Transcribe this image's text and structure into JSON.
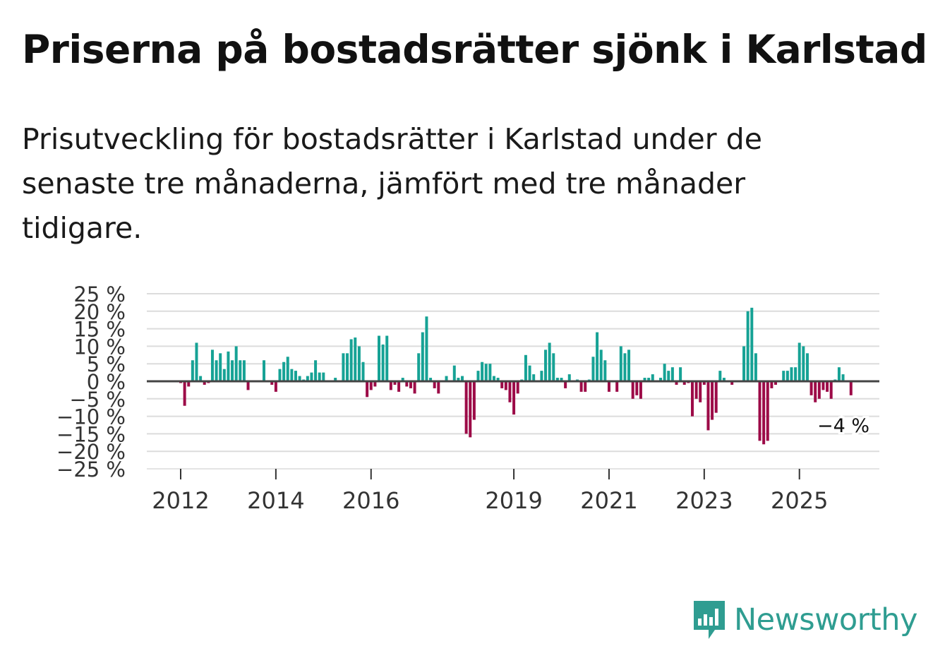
{
  "title": "Priserna på bostadsrätter sjönk i Karlstad",
  "subtitle": "Prisutveckling för bostadsrätter i Karlstad under de senaste tre månaderna, jämfört med tre månader tidigare.",
  "brand": "Newsworthy",
  "colors": {
    "positive": "#16a295",
    "negative": "#9c0a47",
    "grid": "#dcdcdc",
    "zero": "#444444"
  },
  "chart_data": {
    "type": "bar",
    "title": "",
    "xlabel": "",
    "ylabel": "",
    "ylim": [
      -25,
      25
    ],
    "yticks": [
      25,
      20,
      15,
      10,
      5,
      0,
      -5,
      -10,
      -15,
      -20,
      -25
    ],
    "ytick_labels": [
      "25 %",
      "20 %",
      "15 %",
      "10 %",
      "5 %",
      "0 %",
      "−5 %",
      "−10 %",
      "−15 %",
      "−20 %",
      "−25 %"
    ],
    "x_start": "2012-01",
    "xticks": [
      {
        "label": "2012",
        "index": 0
      },
      {
        "label": "2014",
        "index": 24
      },
      {
        "label": "2016",
        "index": 48
      },
      {
        "label": "2019",
        "index": 84
      },
      {
        "label": "2021",
        "index": 108
      },
      {
        "label": "2023",
        "index": 132
      },
      {
        "label": "2025",
        "index": 156
      }
    ],
    "annotation": {
      "text": "−4 %",
      "value": -4
    },
    "values": [
      -0.5,
      -7,
      -1.5,
      6,
      11,
      1.5,
      -1,
      -0.5,
      9,
      6,
      8,
      3.5,
      8.5,
      6,
      10,
      6,
      6,
      -2.5,
      0,
      0,
      0,
      6,
      0,
      -1,
      -3,
      3.5,
      5.5,
      7,
      3.5,
      3,
      1.5,
      0.5,
      1.5,
      2.5,
      6,
      2.5,
      2.5,
      0,
      0,
      1,
      0,
      8,
      8,
      12,
      12.5,
      10,
      5.5,
      -4.5,
      -2.5,
      -1.5,
      13,
      10.5,
      13,
      -2.5,
      -1,
      -3,
      1,
      -1.5,
      -2,
      -3.5,
      8,
      14,
      18.5,
      1,
      -2,
      -3.5,
      0,
      1.5,
      0,
      4.5,
      1,
      1.5,
      -15,
      -16,
      -11,
      3,
      5.5,
      5,
      5,
      1.5,
      1,
      -2,
      -2.5,
      -6,
      -9.5,
      -3.5,
      0.5,
      7.5,
      4.5,
      2,
      0,
      3,
      9,
      11,
      8,
      1,
      1,
      -2,
      2,
      0,
      0.5,
      -3,
      -3,
      0.5,
      7,
      14,
      9,
      6,
      -3,
      0,
      -3,
      10,
      8,
      9,
      -5,
      -4,
      -5,
      1,
      1,
      2,
      0,
      1,
      5,
      3,
      4,
      -1,
      4,
      -1,
      -0.5,
      -10,
      -5,
      -6,
      -1,
      -14,
      -11,
      -9,
      3,
      1,
      0,
      -1,
      0,
      0,
      10,
      20,
      21,
      8,
      -17,
      -18,
      -17,
      -2,
      -1,
      0,
      3,
      3,
      4,
      4,
      11,
      10,
      8,
      -4,
      -6,
      -5,
      -2.5,
      -3,
      -5,
      0.5,
      4,
      2,
      0,
      -4
    ]
  }
}
